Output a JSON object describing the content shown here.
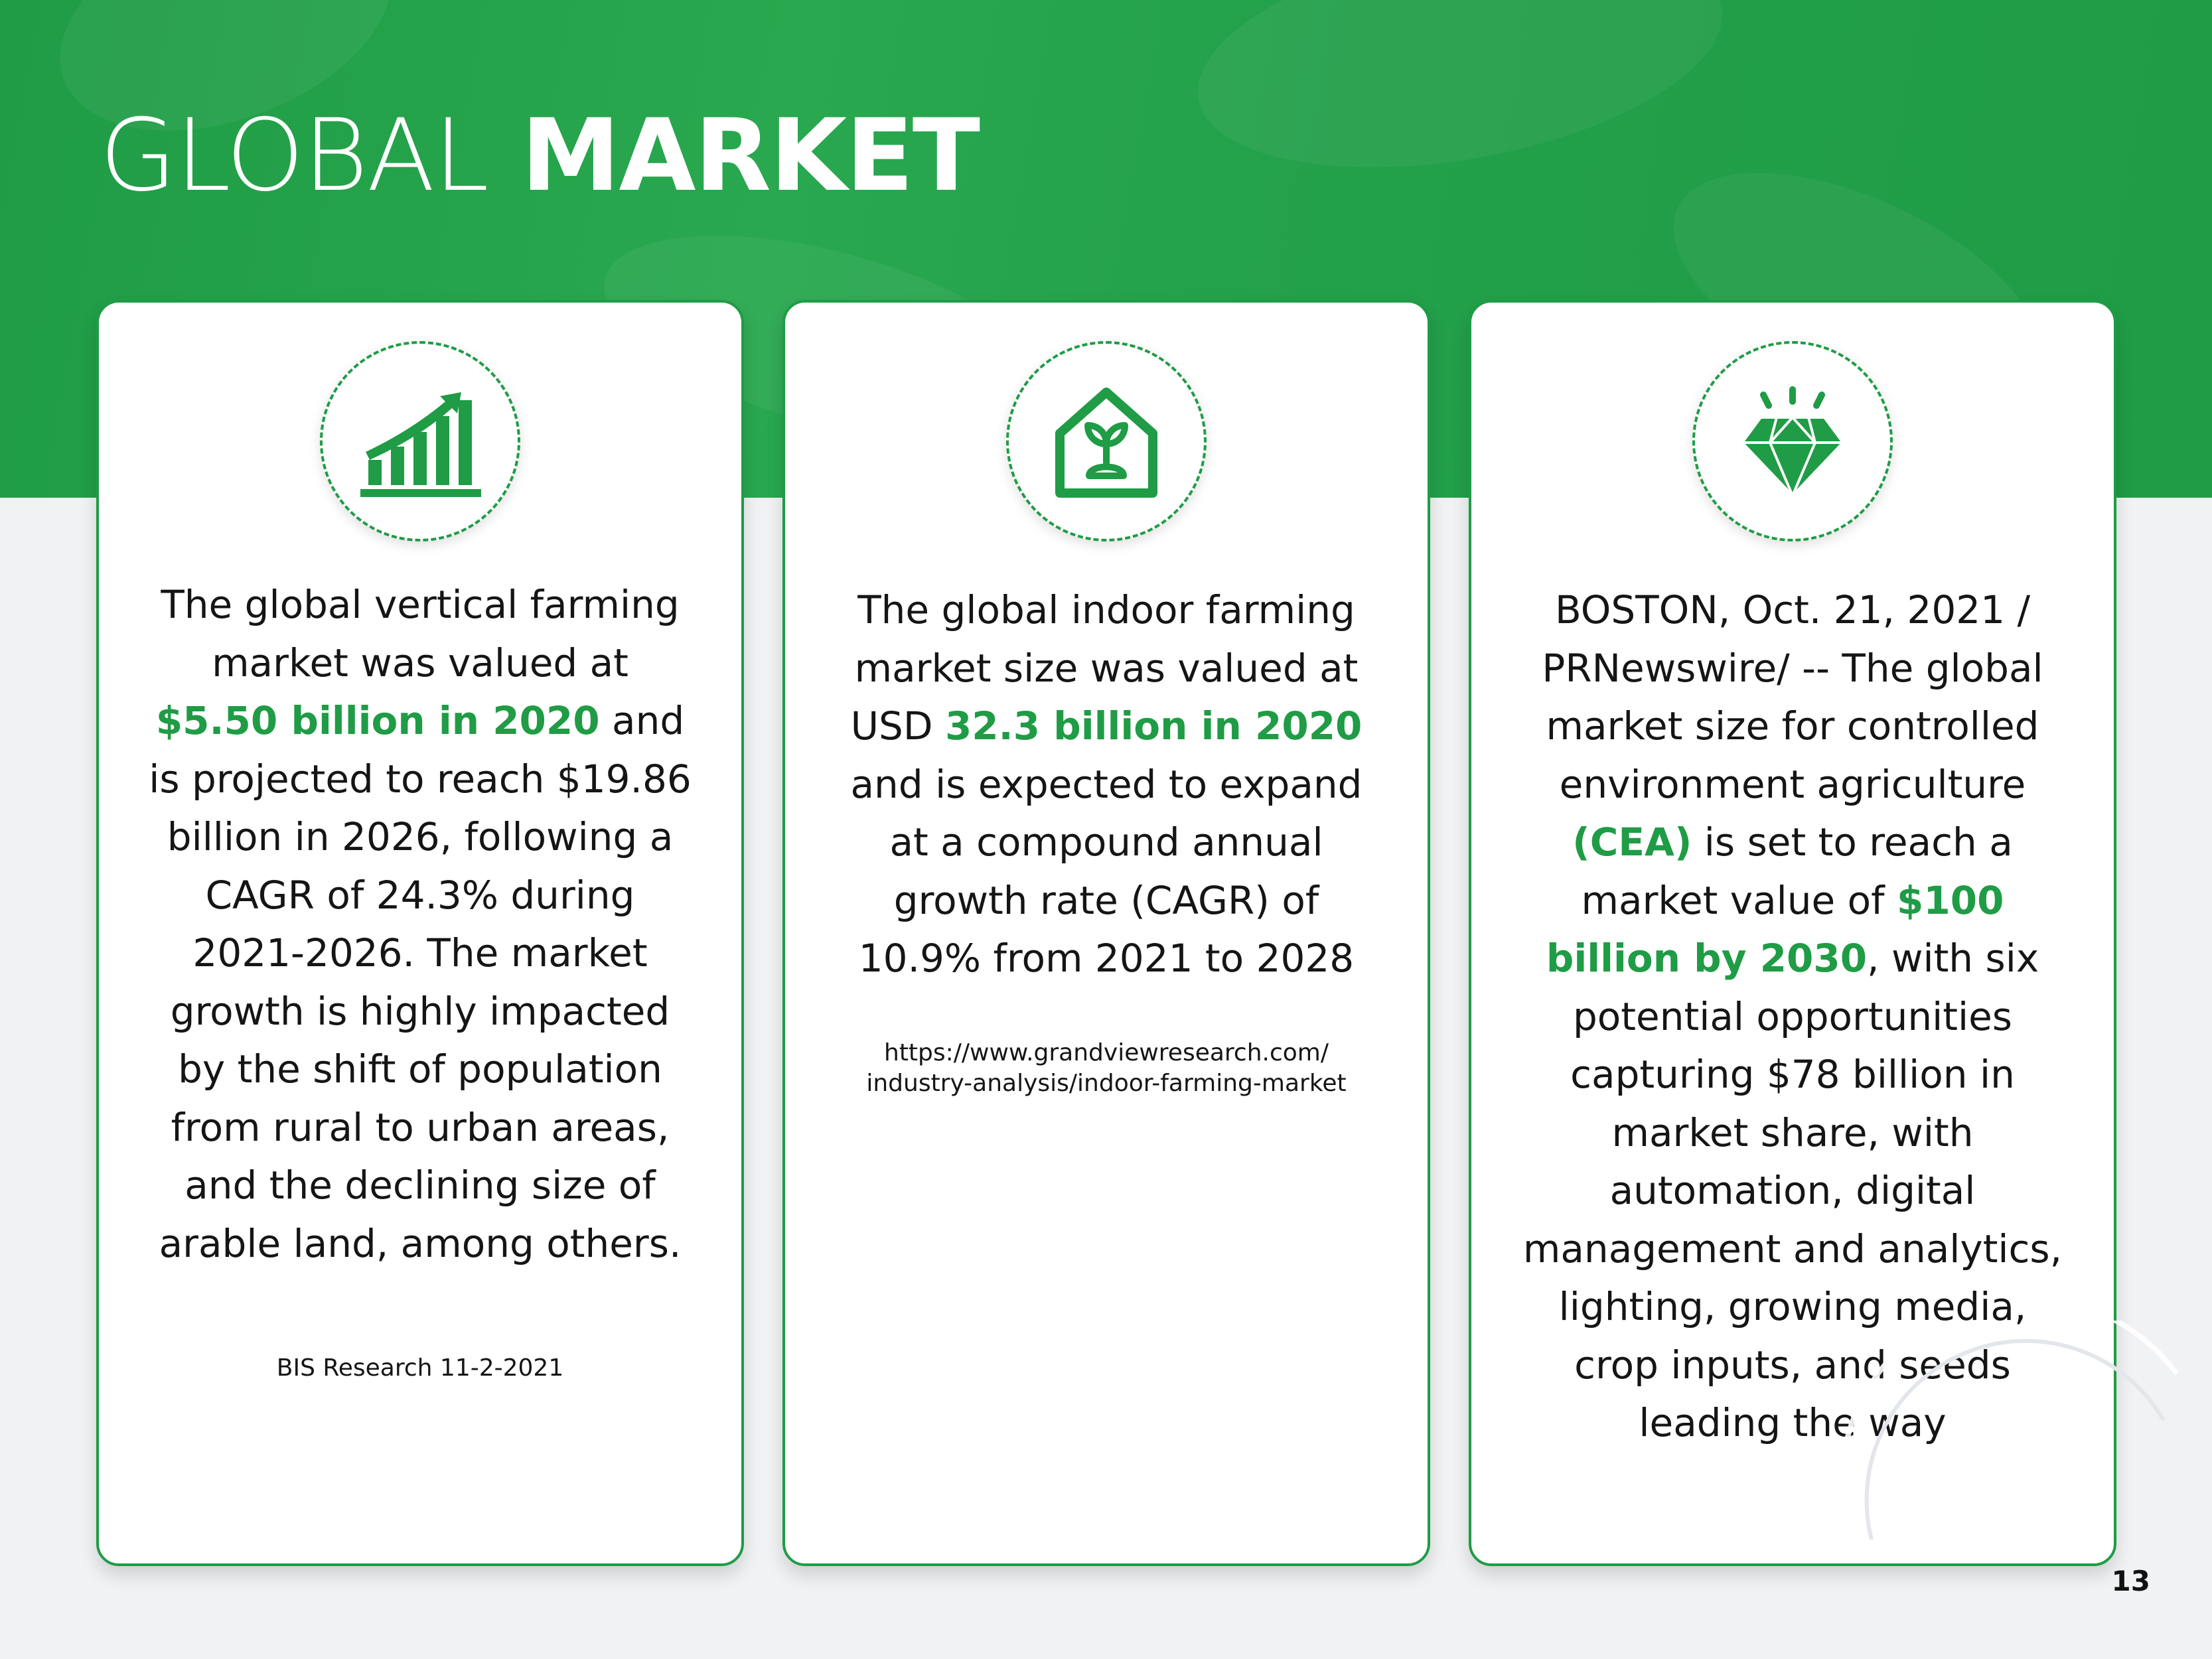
{
  "title": {
    "light": "GLOBAL",
    "bold": "MARKET"
  },
  "cards": [
    {
      "icon": "bar-chart-growth-icon",
      "text": {
        "a": "The global vertical farming market was valued at ",
        "highlight": "$5.50 billion in 2020",
        "b": " and is projected to reach $19.86 billion in 2026, following a CAGR of 24.3% during 2021-2026. The market growth is highly impacted by the shift of population from rural to urban areas, and the declining size of arable land, among others."
      },
      "source": "BIS Research 11-2-2021"
    },
    {
      "icon": "greenhouse-sprout-icon",
      "text": {
        "a": "The global indoor farming market size was valued at USD ",
        "highlight": "32.3 billion in 2020",
        "b": " and is expected to expand at a compound annual growth rate (CAGR) of 10.9% from 2021 to 2028"
      },
      "source_line1": "https://www.grandviewresearch.com/",
      "source_line2": "industry-analysis/indoor-farming-market"
    },
    {
      "icon": "diamond-icon",
      "text": {
        "a": "BOSTON, Oct. 21, 2021 / PRNewswire/ -- The global market size for controlled environment agriculture ",
        "highlight1": "(CEA)",
        "b": " is set to reach a market value of ",
        "highlight2": "$100 billion by 2030",
        "c": ", with six potential opportunities capturing $78 billion in market share, with automation, digital management and analytics, lighting, growing media, crop inputs, and seeds leading the way"
      }
    }
  ],
  "page_number": "13",
  "colors": {
    "accent": "#1f9c45",
    "background": "#f1f2f4",
    "card": "#ffffff"
  }
}
